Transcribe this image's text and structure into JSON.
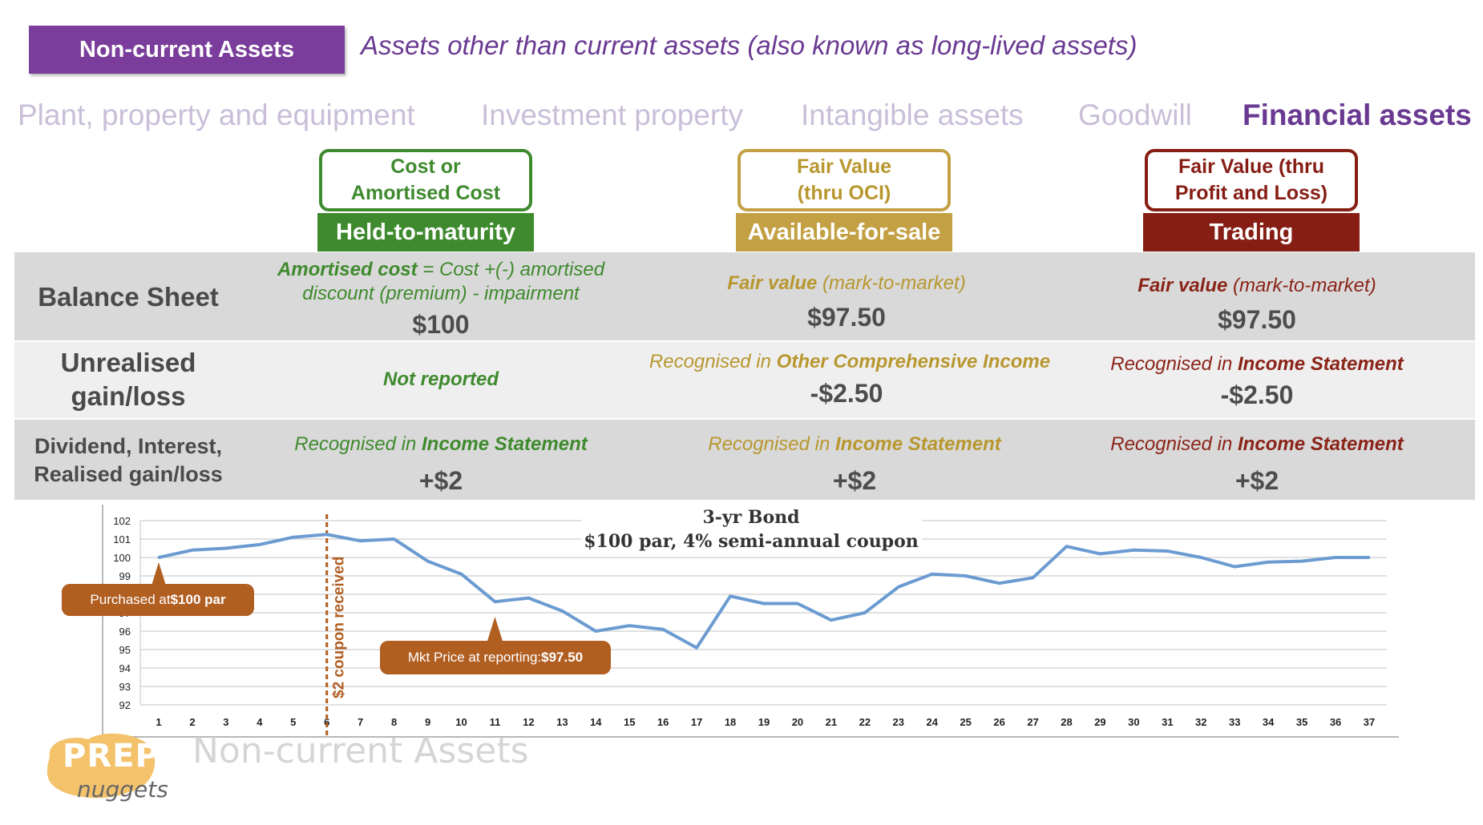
{
  "header": {
    "title": "Non-current Assets",
    "description": "Assets other than current assets (also known as long-lived assets)"
  },
  "categories": [
    {
      "label": "Plant, property and equipment",
      "active": false
    },
    {
      "label": "Investment property",
      "active": false
    },
    {
      "label": "Intangible assets",
      "active": false
    },
    {
      "label": "Goodwill",
      "active": false
    },
    {
      "label": "Financial assets",
      "active": true
    }
  ],
  "columns": [
    {
      "measure": "Cost or Amortised Cost",
      "name": "Held-to-maturity",
      "color": "#3f8a2e",
      "text_color": "#3f8a2e"
    },
    {
      "measure": "Fair Value (thru OCI)",
      "name": "Available-for-sale",
      "color": "#c3a043",
      "text_color": "#b8972f"
    },
    {
      "measure": "Fair Value (thru Profit and Loss)",
      "name": "Trading",
      "color": "#861e15",
      "text_color": "#8a2418"
    }
  ],
  "rows": {
    "balance_sheet": {
      "label": "Balance Sheet",
      "htm": {
        "bold": "Amortised cost",
        "text_line1": " = Cost +(-) amortised",
        "text_line2": "discount (premium) - impairment",
        "amount": "$100"
      },
      "afs": {
        "bold": "Fair value",
        "text": " (mark-to-market)",
        "amount": "$97.50"
      },
      "trading": {
        "bold": "Fair value",
        "text": " (mark-to-market)",
        "amount": "$97.50"
      }
    },
    "unrealised": {
      "label_line1": "Unrealised",
      "label_line2": "gain/loss",
      "htm": {
        "bold": "Not reported"
      },
      "afs": {
        "prefix": "Recognised in ",
        "bold": "Other Comprehensive Income",
        "amount": "-$2.50"
      },
      "trading": {
        "prefix": "Recognised in ",
        "bold": "Income Statement",
        "amount": "-$2.50"
      }
    },
    "dividend": {
      "label_line1": "Dividend, Interest,",
      "label_line2": "Realised gain/loss",
      "htm": {
        "prefix": "Recognised in ",
        "bold": "Income Statement",
        "amount": "+$2"
      },
      "afs": {
        "prefix": "Recognised in ",
        "bold": "Income Statement",
        "amount": "+$2"
      },
      "trading": {
        "prefix": "Recognised in ",
        "bold": "Income Statement",
        "amount": "+$2"
      }
    }
  },
  "chart_data": {
    "type": "line",
    "title_line1": "3-yr Bond",
    "title_line2": "$100 par, 4% semi-annual coupon",
    "x": [
      1,
      2,
      3,
      4,
      5,
      6,
      7,
      8,
      9,
      10,
      11,
      12,
      13,
      14,
      15,
      16,
      17,
      18,
      19,
      20,
      21,
      22,
      23,
      24,
      25,
      26,
      27,
      28,
      29,
      30,
      31,
      32,
      33,
      34,
      35,
      36,
      37
    ],
    "y": [
      100.0,
      100.4,
      100.5,
      100.7,
      101.1,
      101.25,
      100.9,
      101.0,
      99.8,
      99.1,
      97.6,
      97.8,
      97.1,
      96.0,
      96.3,
      96.1,
      95.1,
      97.9,
      97.5,
      97.5,
      96.6,
      97.0,
      98.4,
      99.1,
      99.0,
      98.6,
      98.9,
      100.6,
      100.2,
      100.4,
      100.35,
      100.0,
      99.5,
      99.75,
      99.8,
      100.0,
      100.0
    ],
    "ylim": [
      92,
      102
    ],
    "yticks": [
      92,
      93,
      94,
      95,
      96,
      97,
      98,
      99,
      100,
      101,
      102
    ],
    "grid": true,
    "line_color": "#6b9bd1",
    "coupon_marker": {
      "x": 6,
      "label": "$2 coupon received",
      "color": "#b15e21"
    },
    "annotations": [
      {
        "x": 1,
        "text": "Purchased at ",
        "bold": "$100 par"
      },
      {
        "x": 11,
        "text": "Mkt Price at reporting: ",
        "bold": "$97.50"
      }
    ]
  },
  "footer": {
    "logo_top": "PREP",
    "logo_bottom": "nuggets",
    "watermark": "Non-current Assets"
  }
}
